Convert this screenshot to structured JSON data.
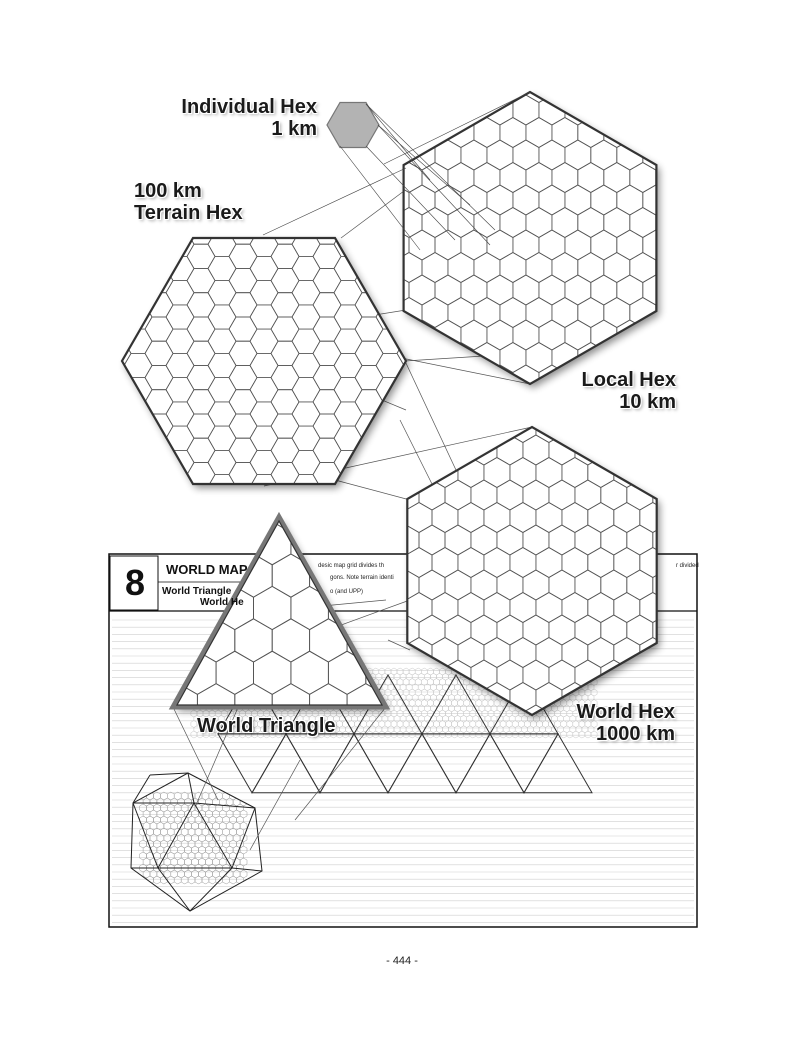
{
  "labels": {
    "individual_hex_line1": "Individual Hex",
    "individual_hex_line2": "1 km",
    "terrain_hex_line1": "100 km",
    "terrain_hex_line2": "Terrain Hex",
    "local_hex_line1": "Local Hex",
    "local_hex_line2": "10 km",
    "world_hex_line1": "World Hex",
    "world_hex_line2": "1000 km",
    "world_triangle": "World Triangle"
  },
  "form": {
    "number": "8",
    "title": "WORLD MAP",
    "subtitle_line1": "World Triangle",
    "subtitle_line2": "World He",
    "note_line1": "desic map grid divides th",
    "note_line2": "gons. Note terrain identi",
    "note_line3": "o (and UPP)",
    "note_right": "r divided"
  },
  "page_number": "- 444 -"
}
